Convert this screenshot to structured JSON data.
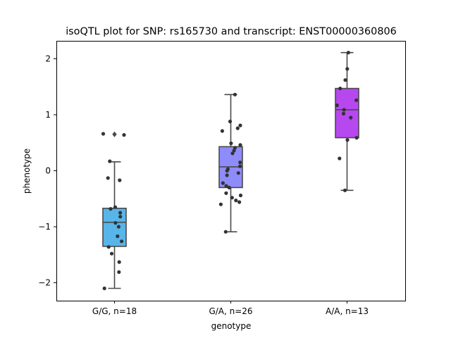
{
  "chart_data": {
    "type": "box",
    "title": "isoQTL plot for SNP: rs165730 and transcript: ENST00000360806",
    "xlabel": "genotype",
    "ylabel": "phenotype",
    "ylim": [
      -2.32,
      2.32
    ],
    "yticks": [
      -2,
      -1,
      0,
      1,
      2
    ],
    "ytick_labels": [
      "−2",
      "−1",
      "0",
      "1",
      "2"
    ],
    "grid": false,
    "categories": [
      "G/G, n=18",
      "G/A, n=26",
      "A/A, n=13"
    ],
    "colors": [
      "#57b5ea",
      "#8e8cfb",
      "#b748f0"
    ],
    "boxes": [
      {
        "q1": -1.35,
        "median": -0.92,
        "q3": -0.67,
        "whisker_low": -2.1,
        "whisker_high": 0.16,
        "outliers": [
          0.65
        ],
        "points": [
          0.66,
          0.64,
          0.17,
          -0.13,
          -0.17,
          -0.65,
          -0.68,
          -0.75,
          -0.82,
          -0.93,
          -1.0,
          -1.17,
          -1.26,
          -1.36,
          -1.48,
          -1.63,
          -1.81,
          -2.1
        ]
      },
      {
        "q1": -0.3,
        "median": 0.07,
        "q3": 0.43,
        "whisker_low": -1.09,
        "whisker_high": 1.36,
        "outliers": [],
        "points": [
          1.36,
          0.88,
          0.81,
          0.76,
          0.71,
          0.49,
          0.46,
          0.41,
          0.36,
          0.31,
          0.15,
          0.08,
          0.03,
          0.0,
          -0.04,
          -0.08,
          -0.22,
          -0.27,
          -0.3,
          -0.4,
          -0.44,
          -0.48,
          -0.53,
          -0.56,
          -0.6,
          -1.09
        ]
      },
      {
        "q1": 0.59,
        "median": 1.09,
        "q3": 1.47,
        "whisker_low": -0.35,
        "whisker_high": 2.11,
        "outliers": [],
        "points": [
          2.11,
          1.82,
          1.62,
          1.47,
          1.26,
          1.17,
          1.09,
          1.02,
          0.95,
          0.59,
          0.55,
          0.22,
          -0.35
        ]
      }
    ]
  }
}
